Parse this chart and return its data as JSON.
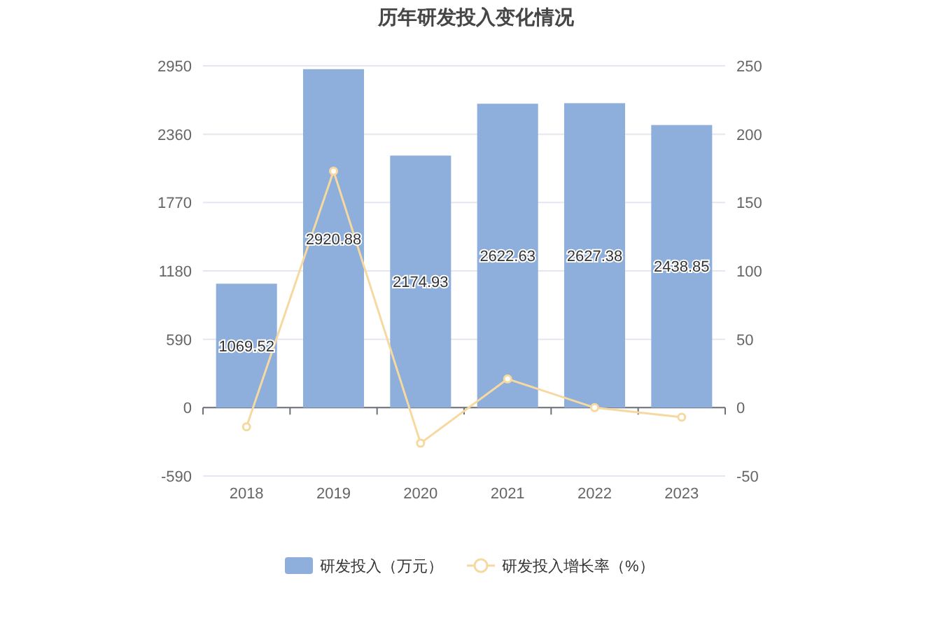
{
  "chart_data": {
    "type": "bar",
    "title": "历年研发投入变化情况",
    "categories": [
      "2018",
      "2019",
      "2020",
      "2021",
      "2022",
      "2023"
    ],
    "series": [
      {
        "name": "研发投入（万元）",
        "color": "#8eaedb",
        "values": [
          1069.52,
          2920.88,
          2174.93,
          2622.63,
          2627.38,
          2438.85
        ],
        "value_labels": [
          "1069.52",
          "2920.88",
          "2174.93",
          "2622.63",
          "2627.38",
          "2438.85"
        ]
      },
      {
        "name": "研发投入增长率（%）",
        "type": "line",
        "axis": "y2",
        "color": "#f5d9a0",
        "marker": "circle",
        "values": [
          -14,
          173,
          -26,
          21,
          0,
          -7
        ]
      }
    ],
    "ylim": [
      -590,
      2950
    ],
    "yticks": [
      -590,
      0,
      590,
      1180,
      1770,
      2360,
      2950
    ],
    "y2lim": [
      -50,
      250
    ],
    "y2ticks": [
      -50,
      0,
      50,
      100,
      150,
      200,
      250
    ],
    "grid": "y",
    "legend": "bottom"
  }
}
